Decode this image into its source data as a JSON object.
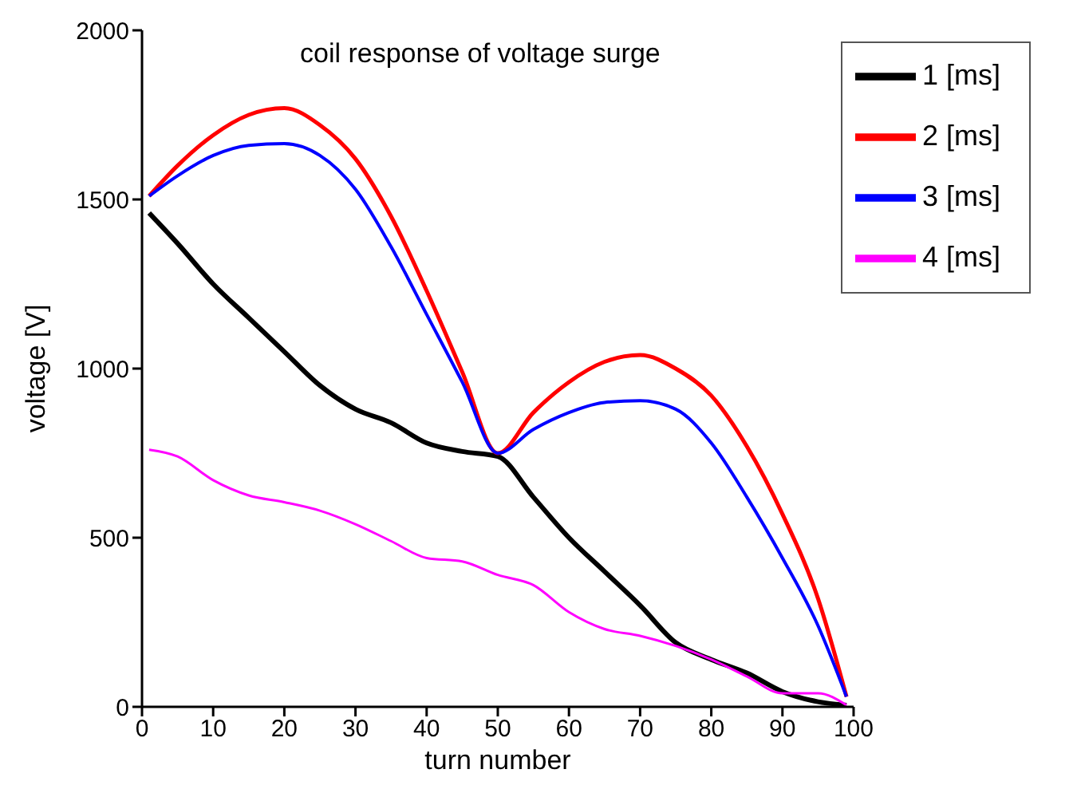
{
  "chart_data": {
    "type": "line",
    "title": "coil response of voltage surge",
    "xlabel": "turn number",
    "ylabel": "voltage [V]",
    "x": [
      1,
      5,
      10,
      15,
      20,
      25,
      30,
      35,
      40,
      45,
      50,
      55,
      60,
      65,
      70,
      75,
      80,
      85,
      90,
      95,
      99
    ],
    "series": [
      {
        "name": "1 [ms]",
        "color": "#000000",
        "values": [
          1460,
          1370,
          1250,
          1150,
          1050,
          950,
          880,
          840,
          780,
          755,
          740,
          620,
          500,
          400,
          300,
          190,
          140,
          100,
          45,
          15,
          5
        ]
      },
      {
        "name": "2 [ms]",
        "color": "#ff0000",
        "values": [
          1510,
          1600,
          1690,
          1750,
          1770,
          1720,
          1620,
          1450,
          1230,
          990,
          750,
          870,
          960,
          1020,
          1040,
          1000,
          920,
          770,
          570,
          320,
          30
        ]
      },
      {
        "name": "3 [ms]",
        "color": "#0000ff",
        "values": [
          1510,
          1570,
          1630,
          1660,
          1665,
          1630,
          1530,
          1360,
          1160,
          960,
          750,
          820,
          870,
          900,
          905,
          880,
          780,
          620,
          440,
          240,
          30
        ]
      },
      {
        "name": "4 [ms]",
        "color": "#ff00ff",
        "values": [
          760,
          740,
          670,
          625,
          605,
          580,
          540,
          490,
          440,
          430,
          390,
          360,
          280,
          230,
          210,
          180,
          140,
          90,
          40,
          40,
          5
        ]
      }
    ],
    "xlim": [
      0,
      100
    ],
    "xticks": [
      0,
      10,
      20,
      30,
      40,
      50,
      60,
      70,
      80,
      90,
      100
    ],
    "ylim": [
      0,
      2000
    ],
    "yticks": [
      0,
      500,
      1000,
      1500,
      2000
    ],
    "grid": false,
    "legend": "top right",
    "marker": "none",
    "line_style": "solid"
  }
}
